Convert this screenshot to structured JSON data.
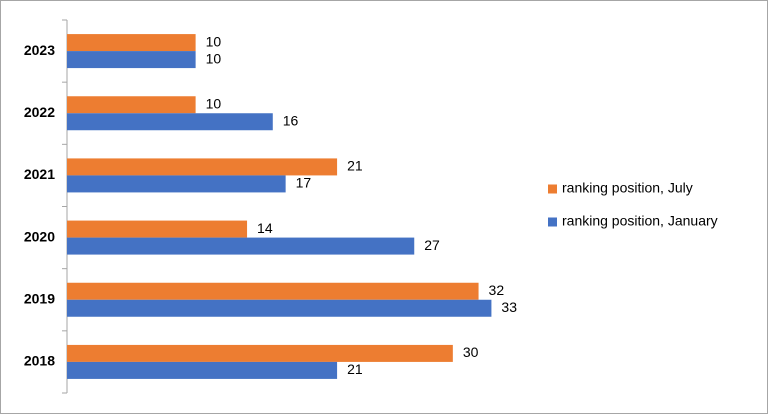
{
  "chart_data": {
    "type": "hbar",
    "categories": [
      "2023",
      "2022",
      "2021",
      "2020",
      "2019",
      "2018"
    ],
    "series": [
      {
        "name": "ranking position, July",
        "color": "#ed7d31",
        "values": [
          10,
          10,
          21,
          14,
          32,
          30
        ]
      },
      {
        "name": "ranking position, January",
        "color": "#4472c4",
        "values": [
          10,
          16,
          17,
          27,
          33,
          21
        ]
      }
    ],
    "xlim": [
      0,
      36
    ],
    "legend": "right"
  }
}
